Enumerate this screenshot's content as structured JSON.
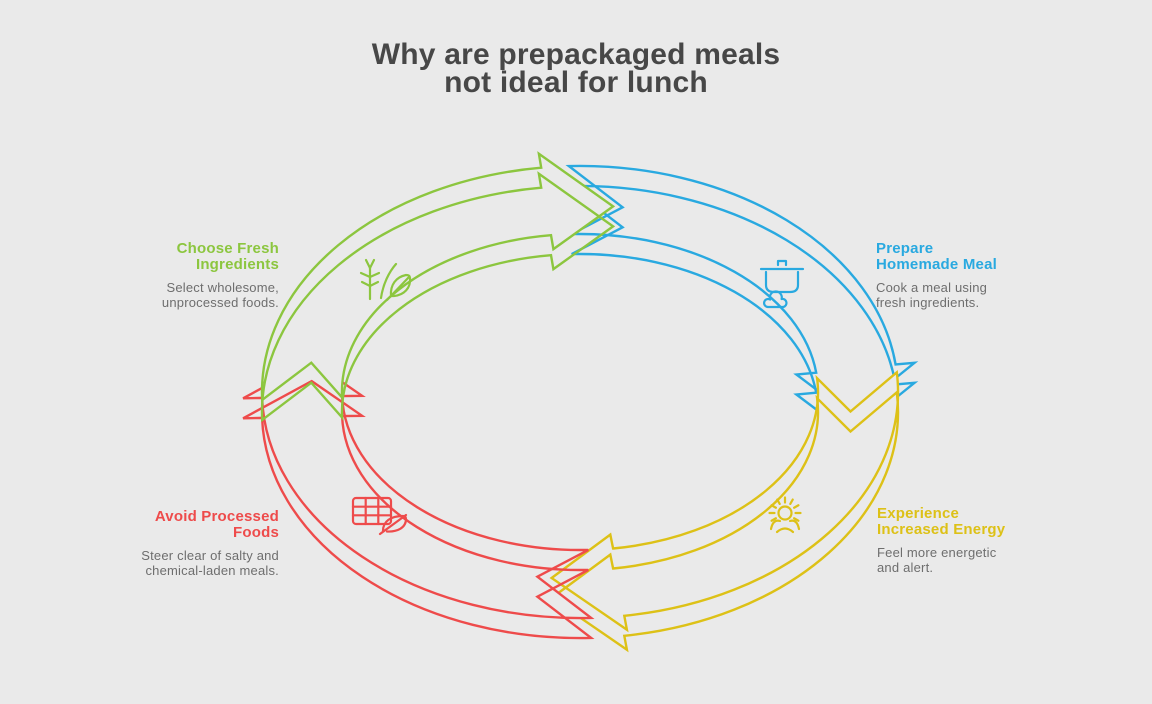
{
  "title": "Why are prepackaged meals\nnot ideal for lunch",
  "background_color": "#eaeaea",
  "steps": [
    {
      "heading": "Choose Fresh\nIngredients",
      "description": "Select wholesome,\nunprocessed foods.",
      "color": "#8cc63f",
      "icon": "plant-icon"
    },
    {
      "heading": "Prepare\nHomemade Meal",
      "description": "Cook a meal using\nfresh ingredients.",
      "color": "#29a9e0",
      "icon": "cooking-pot-icon"
    },
    {
      "heading": "Experience\nIncreased Energy",
      "description": "Feel more energetic\nand alert.",
      "color": "#ddc117",
      "icon": "sun-energy-icon"
    },
    {
      "heading": "Avoid Processed\nFoods",
      "description": "Steer clear of salty and\nchemical-laden meals.",
      "color": "#ee4b4b",
      "icon": "processed-food-grid-icon"
    }
  ]
}
